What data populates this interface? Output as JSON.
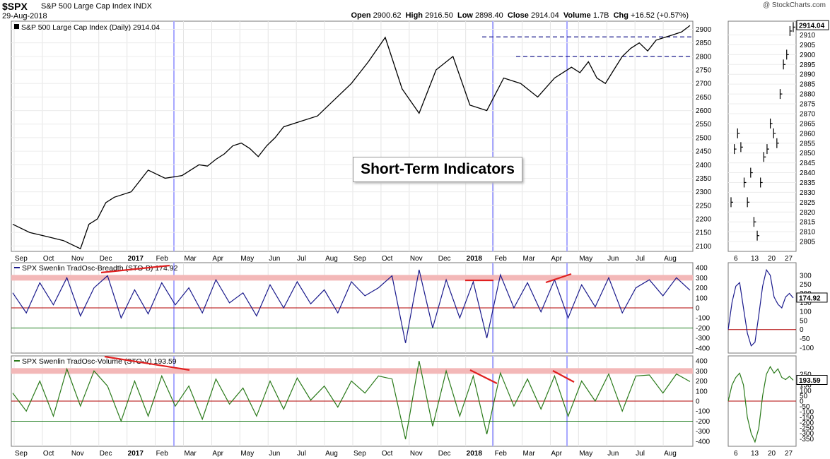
{
  "header": {
    "symbol": "$SPX",
    "name": "S&P 500 Large Cap Index",
    "exchange": "INDX",
    "date": "29-Aug-2018",
    "credit": "@ StockCharts.com",
    "open_label": "Open",
    "open": "2900.62",
    "high_label": "High",
    "high": "2916.50",
    "low_label": "Low",
    "low": "2898.40",
    "close_label": "Close",
    "close": "2914.04",
    "volume_label": "Volume",
    "volume": "1.7B",
    "chg_label": "Chg",
    "chg": "+16.52 (+0.57%)"
  },
  "annotation": "Short-Term Indicators",
  "colors": {
    "price": "#000000",
    "breadth": "#1a1a8c",
    "volume": "#2a7a1a",
    "zero_line": "#b00000",
    "minus_line": "#1a7a1a",
    "band": "#f3b8b8",
    "resistance": "#1a1a8c",
    "trend": "#e02020",
    "marker": "#a8a8ff"
  },
  "chart_data": [
    {
      "type": "line",
      "panel": "price",
      "legend": "S&P 500 Large Cap Index (Daily)",
      "last_value": "2914.04",
      "ylim": [
        2080,
        2930
      ],
      "yticks": [
        2100,
        2150,
        2200,
        2250,
        2300,
        2350,
        2400,
        2450,
        2500,
        2550,
        2600,
        2650,
        2700,
        2750,
        2800,
        2850,
        2900
      ],
      "x_labels": [
        "Sep",
        "Oct",
        "Nov",
        "Dec",
        "2017",
        "Feb",
        "Mar",
        "Apr",
        "May",
        "Jun",
        "Jul",
        "Aug",
        "Sep",
        "Oct",
        "Nov",
        "Dec",
        "2018",
        "Feb",
        "Mar",
        "Apr",
        "May",
        "Jun",
        "Jul",
        "Aug"
      ],
      "resistance_levels": [
        2872,
        2800
      ],
      "series": {
        "x": [
          0,
          10,
          20,
          30,
          40,
          45,
          50,
          55,
          60,
          70,
          80,
          90,
          100,
          110,
          115,
          120,
          125,
          130,
          135,
          140,
          145,
          150,
          155,
          160,
          170,
          180,
          190,
          200,
          210,
          220,
          230,
          240,
          250,
          260,
          270,
          280,
          290,
          300,
          310,
          320,
          330,
          335,
          340,
          345,
          350,
          355,
          360,
          365,
          370,
          375,
          380,
          385,
          390,
          395,
          400
        ],
        "values": [
          2180,
          2150,
          2135,
          2120,
          2090,
          2180,
          2200,
          2260,
          2280,
          2300,
          2380,
          2350,
          2360,
          2400,
          2395,
          2420,
          2440,
          2470,
          2480,
          2460,
          2430,
          2470,
          2500,
          2540,
          2560,
          2580,
          2640,
          2700,
          2780,
          2870,
          2680,
          2590,
          2750,
          2800,
          2620,
          2600,
          2720,
          2700,
          2650,
          2720,
          2760,
          2740,
          2780,
          2720,
          2700,
          2750,
          2800,
          2830,
          2850,
          2820,
          2860,
          2870,
          2880,
          2890,
          2914
        ]
      },
      "mini_chart": {
        "x_labels": [
          "6",
          "13",
          "20",
          "27"
        ],
        "ylim": [
          2800,
          2917
        ],
        "yticks": [
          2805,
          2810,
          2815,
          2820,
          2825,
          2830,
          2835,
          2840,
          2845,
          2850,
          2855,
          2860,
          2865,
          2870,
          2875,
          2880,
          2885,
          2890,
          2895,
          2900,
          2905,
          2910
        ],
        "values": [
          2825,
          2852,
          2860,
          2853,
          2835,
          2825,
          2840,
          2815,
          2808,
          2835,
          2848,
          2852,
          2865,
          2860,
          2855,
          2880,
          2895,
          2900,
          2912,
          2914
        ]
      }
    },
    {
      "type": "line",
      "panel": "breadth",
      "legend": "SPX Swenlin TradOsc-Breadth (STO-B)",
      "last_value": "174.92",
      "ylim": [
        -450,
        450
      ],
      "yticks": [
        -400,
        -300,
        -200,
        -100,
        0,
        100,
        200,
        300,
        400
      ],
      "series": {
        "x": [
          0,
          8,
          16,
          24,
          32,
          40,
          48,
          56,
          64,
          72,
          80,
          88,
          96,
          104,
          112,
          120,
          128,
          136,
          144,
          152,
          160,
          168,
          176,
          184,
          192,
          200,
          208,
          216,
          224,
          232,
          240,
          248,
          256,
          264,
          272,
          280,
          288,
          296,
          304,
          312,
          320,
          328,
          336,
          344,
          352,
          360,
          368,
          376,
          384,
          392,
          400
        ],
        "values": [
          150,
          -50,
          250,
          30,
          300,
          -80,
          200,
          320,
          -100,
          180,
          -60,
          250,
          30,
          200,
          -50,
          280,
          50,
          150,
          -80,
          230,
          0,
          260,
          40,
          180,
          -50,
          260,
          120,
          200,
          320,
          -350,
          380,
          -200,
          280,
          -100,
          260,
          -300,
          330,
          0,
          250,
          -40,
          280,
          -100,
          230,
          10,
          300,
          -50,
          200,
          280,
          120,
          300,
          175
        ]
      },
      "mini_chart": {
        "ylim": [
          -130,
          370
        ],
        "yticks": [
          -100,
          -50,
          0,
          50,
          100,
          150,
          200,
          250,
          300
        ],
        "values": [
          0,
          150,
          240,
          260,
          120,
          -20,
          -90,
          -70,
          80,
          240,
          330,
          300,
          180,
          140,
          120,
          180,
          200,
          175
        ]
      },
      "band_levels": [
        300
      ],
      "zero_level": 0,
      "minus_level": -200
    },
    {
      "type": "line",
      "panel": "volume",
      "legend": "SPX Swenlin TradOsc-Volume (STO-V)",
      "last_value": "193.59",
      "ylim": [
        -450,
        450
      ],
      "yticks": [
        -400,
        -300,
        -200,
        -100,
        0,
        100,
        200,
        300,
        400
      ],
      "series": {
        "x": [
          0,
          8,
          16,
          24,
          32,
          40,
          48,
          56,
          64,
          72,
          80,
          88,
          96,
          104,
          112,
          120,
          128,
          136,
          144,
          152,
          160,
          168,
          176,
          184,
          192,
          200,
          208,
          216,
          224,
          232,
          240,
          248,
          256,
          264,
          272,
          280,
          288,
          296,
          304,
          312,
          320,
          328,
          336,
          344,
          352,
          360,
          368,
          376,
          384,
          392,
          400
        ],
        "values": [
          80,
          -100,
          200,
          -150,
          320,
          -50,
          300,
          150,
          -200,
          200,
          -150,
          250,
          -50,
          150,
          -180,
          220,
          -30,
          130,
          -150,
          200,
          -80,
          230,
          10,
          150,
          -60,
          200,
          80,
          250,
          220,
          -380,
          400,
          -250,
          300,
          -150,
          250,
          -330,
          280,
          -50,
          220,
          -80,
          250,
          -150,
          200,
          0,
          270,
          -100,
          250,
          260,
          80,
          270,
          194
        ]
      },
      "mini_chart": {
        "ylim": [
          -420,
          420
        ],
        "yticks": [
          -350,
          -300,
          -250,
          -200,
          -150,
          -100,
          -50,
          0,
          50,
          100,
          150,
          200,
          250
        ],
        "values": [
          0,
          150,
          220,
          260,
          150,
          -150,
          -300,
          -380,
          -250,
          50,
          250,
          320,
          260,
          300,
          220,
          200,
          230,
          194
        ]
      },
      "band_levels": [
        300
      ],
      "zero_level": 0,
      "minus_level": -200
    }
  ]
}
